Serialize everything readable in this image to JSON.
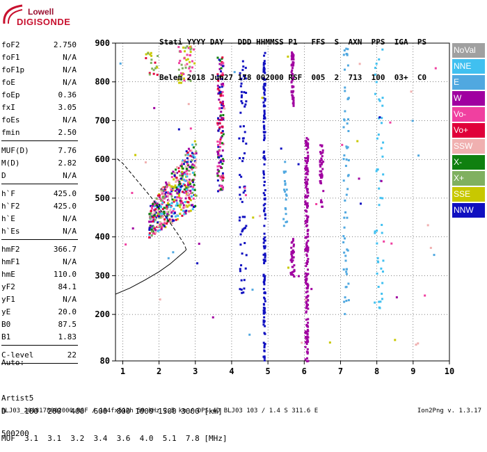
{
  "logo": {
    "line1": "Lowell",
    "line2": "DIGISONDE"
  },
  "header": {
    "line1": "Stati YYYY DAY   DDD HHMMSS P1   FFS  S  AXN  PPS  IGA  PS",
    "line2": "Belem 2018 Jun27 178 002000 RSF  005  2  713  100  03+  C0"
  },
  "params": {
    "group1": [
      {
        "label": "foF2",
        "value": "2.750"
      },
      {
        "label": "foF1",
        "value": "N/A"
      },
      {
        "label": "foF1p",
        "value": "N/A"
      },
      {
        "label": "foE",
        "value": "N/A"
      },
      {
        "label": "foEp",
        "value": "0.36"
      },
      {
        "label": "fxI",
        "value": "3.05"
      },
      {
        "label": "foEs",
        "value": "N/A"
      },
      {
        "label": "fmin",
        "value": "2.50"
      }
    ],
    "group2": [
      {
        "label": "MUF(D)",
        "value": "7.76"
      },
      {
        "label": "M(D)",
        "value": "2.82"
      },
      {
        "label": "D",
        "value": "N/A"
      }
    ],
    "group3": [
      {
        "label": "h`F",
        "value": "425.0"
      },
      {
        "label": "h`F2",
        "value": "425.0"
      },
      {
        "label": "h`E",
        "value": "N/A"
      },
      {
        "label": "h`Es",
        "value": "N/A"
      }
    ],
    "group4": [
      {
        "label": "hmF2",
        "value": "366.7"
      },
      {
        "label": "hmF1",
        "value": "N/A"
      },
      {
        "label": "hmE",
        "value": "110.0"
      },
      {
        "label": "yF2",
        "value": "84.1"
      },
      {
        "label": "yF1",
        "value": "N/A"
      },
      {
        "label": "yE",
        "value": "20.0"
      },
      {
        "label": "B0",
        "value": "87.5"
      },
      {
        "label": "B1",
        "value": "1.83"
      }
    ],
    "clevel": {
      "label": "C-level",
      "value": "22"
    }
  },
  "auto": {
    "line1": "Auto:",
    "line2": "Artist5",
    "line3": "500200"
  },
  "legend": [
    {
      "name": "NoVal",
      "color": "#a0a0a0"
    },
    {
      "name": "NNE",
      "color": "#40c0f0"
    },
    {
      "name": "E",
      "color": "#50a8e0"
    },
    {
      "name": "W",
      "color": "#a000a0"
    },
    {
      "name": "Vo-",
      "color": "#f040a0"
    },
    {
      "name": "Vo+",
      "color": "#e0003a"
    },
    {
      "name": "SSW",
      "color": "#f0b0b0"
    },
    {
      "name": "X-",
      "color": "#108010"
    },
    {
      "name": "X+",
      "color": "#80b060"
    },
    {
      "name": "SSE",
      "color": "#c8c800"
    },
    {
      "name": "NNW",
      "color": "#1010c0"
    }
  ],
  "dmuf": {
    "line1": "D    100  200  400  600  800 1000 1500 3000 [km]",
    "line2": "MUF  3.1  3.1  3.2  3.4  3.6  4.0  5.1  7.8 [MHz]"
  },
  "footer": "BLJ03_2018178002000.RSF / 184fx512h 50 kHz 2.5 km / DPS-4D BLJ03 103 / 1.4 S 311.6 E",
  "version": "Ion2Png v. 1.3.17",
  "chart_data": {
    "type": "scatter",
    "xlim": [
      0.8,
      10
    ],
    "ylim": [
      80,
      900
    ],
    "xticks": [
      "1",
      "2",
      "3",
      "4",
      "5",
      "6",
      "7",
      "8",
      "9",
      "10"
    ],
    "yticks": [
      "80",
      "200",
      "300",
      "400",
      "500",
      "600",
      "700",
      "800",
      "900"
    ],
    "profile": {
      "x": [
        0.8,
        1.2,
        1.6,
        2.0,
        2.3,
        2.55,
        2.7,
        2.75,
        2.7,
        2.5,
        2.2,
        1.8,
        1.4,
        1.0,
        0.8
      ],
      "y": [
        252,
        268,
        288,
        310,
        330,
        350,
        362,
        366.7,
        380,
        410,
        450,
        500,
        545,
        590,
        605
      ],
      "dashed_from_y": 366.7
    },
    "traces": [
      {
        "name": "F-trace cluster",
        "x": [
          1.6,
          3.0
        ],
        "y": [
          400,
          600
        ]
      },
      {
        "name": "F-trace vertical 3.6",
        "x": [
          3.6,
          3.75
        ],
        "y": [
          520,
          870
        ]
      },
      {
        "name": "W column 5.6",
        "x": [
          5.6,
          5.7
        ],
        "y": [
          740,
          880
        ]
      },
      {
        "name": "W column 6",
        "x": [
          6.0,
          6.1
        ],
        "y": [
          80,
          660
        ]
      },
      {
        "name": "NNW column 4.9",
        "x": [
          4.85,
          4.9
        ],
        "y": [
          80,
          880
        ]
      },
      {
        "name": "NNW column 4.2",
        "x": [
          4.2,
          4.35
        ],
        "y": [
          240,
          860
        ]
      }
    ]
  }
}
